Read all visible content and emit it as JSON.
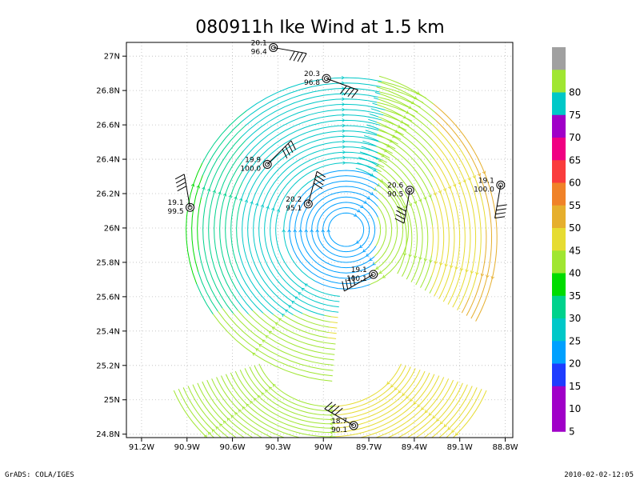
{
  "title": "080911h Ike Wind at 1.5 km",
  "footer_left": "GrADS: COLA/IGES",
  "footer_right": "2010-02-02-12:05",
  "map": {
    "lon_range": [
      -91.3,
      -88.75
    ],
    "lat_range": [
      24.78,
      27.08
    ],
    "lon_ticks": [
      {
        "v": -91.2,
        "label": "91.2W"
      },
      {
        "v": -90.9,
        "label": "90.9W"
      },
      {
        "v": -90.6,
        "label": "90.6W"
      },
      {
        "v": -90.3,
        "label": "90.3W"
      },
      {
        "v": -90.0,
        "label": "90W"
      },
      {
        "v": -89.7,
        "label": "89.7W"
      },
      {
        "v": -89.4,
        "label": "89.4W"
      },
      {
        "v": -89.1,
        "label": "89.1W"
      },
      {
        "v": -88.8,
        "label": "88.8W"
      }
    ],
    "lat_ticks": [
      {
        "v": 27.0,
        "label": "27N"
      },
      {
        "v": 26.8,
        "label": "26.8N"
      },
      {
        "v": 26.6,
        "label": "26.6N"
      },
      {
        "v": 26.4,
        "label": "26.4N"
      },
      {
        "v": 26.2,
        "label": "26.2N"
      },
      {
        "v": 26.0,
        "label": "26N"
      },
      {
        "v": 25.8,
        "label": "25.8N"
      },
      {
        "v": 25.6,
        "label": "25.6N"
      },
      {
        "v": 25.4,
        "label": "25.4N"
      },
      {
        "v": 25.2,
        "label": "25.2N"
      },
      {
        "v": 25.0,
        "label": "25N"
      },
      {
        "v": 24.8,
        "label": "24.8N"
      }
    ],
    "grid": true,
    "storm_center": {
      "lon": -89.85,
      "lat": 25.99
    }
  },
  "colorbar": {
    "levels": [
      {
        "label": "",
        "color": "#a0a0a0"
      },
      {
        "label": "80",
        "color": "#a0e632"
      },
      {
        "label": "75",
        "color": "#00c8c8"
      },
      {
        "label": "70",
        "color": "#a000c8"
      },
      {
        "label": "65",
        "color": "#f00082"
      },
      {
        "label": "60",
        "color": "#fa3c3c"
      },
      {
        "label": "55",
        "color": "#f08228"
      },
      {
        "label": "50",
        "color": "#e6af2d"
      },
      {
        "label": "45",
        "color": "#e6dc32"
      },
      {
        "label": "40",
        "color": "#a0e632"
      },
      {
        "label": "35",
        "color": "#00dc00"
      },
      {
        "label": "30",
        "color": "#00d28c"
      },
      {
        "label": "25",
        "color": "#00c8c8"
      },
      {
        "label": "20",
        "color": "#00a0ff"
      },
      {
        "label": "15",
        "color": "#1e3cff"
      },
      {
        "label": "10",
        "color": "#a000c8"
      },
      {
        "label": "5",
        "color": "#a000c8"
      }
    ]
  },
  "dropsondes": [
    {
      "lon": -90.33,
      "lat": 27.05,
      "top": "20.1",
      "bottom": "96.4",
      "dir": 100,
      "flag_side": "r"
    },
    {
      "lon": -89.98,
      "lat": 26.87,
      "top": "20.3",
      "bottom": "96.8",
      "dir": 110,
      "flag_side": "r"
    },
    {
      "lon": -90.37,
      "lat": 26.37,
      "top": "19.9",
      "bottom": "100.0",
      "dir": 45,
      "flag_side": "r"
    },
    {
      "lon": -90.88,
      "lat": 26.12,
      "top": "19.1",
      "bottom": "99.5",
      "dir": 350,
      "flag_side": "l"
    },
    {
      "lon": -90.1,
      "lat": 26.14,
      "top": "20.2",
      "bottom": "95.1",
      "dir": 15,
      "flag_side": "r"
    },
    {
      "lon": -89.43,
      "lat": 26.22,
      "top": "20.6",
      "bottom": "90.5",
      "dir": 190,
      "flag_side": "r"
    },
    {
      "lon": -88.83,
      "lat": 26.25,
      "top": "19.1",
      "bottom": "100.0",
      "dir": 190,
      "flag_side": "l"
    },
    {
      "lon": -89.67,
      "lat": 25.73,
      "top": "19.1",
      "bottom": "100.1",
      "dir": 240,
      "flag_side": "r"
    },
    {
      "lon": -89.8,
      "lat": 24.85,
      "top": "18.7",
      "bottom": "90.1",
      "dir": 300,
      "flag_side": "r"
    }
  ]
}
